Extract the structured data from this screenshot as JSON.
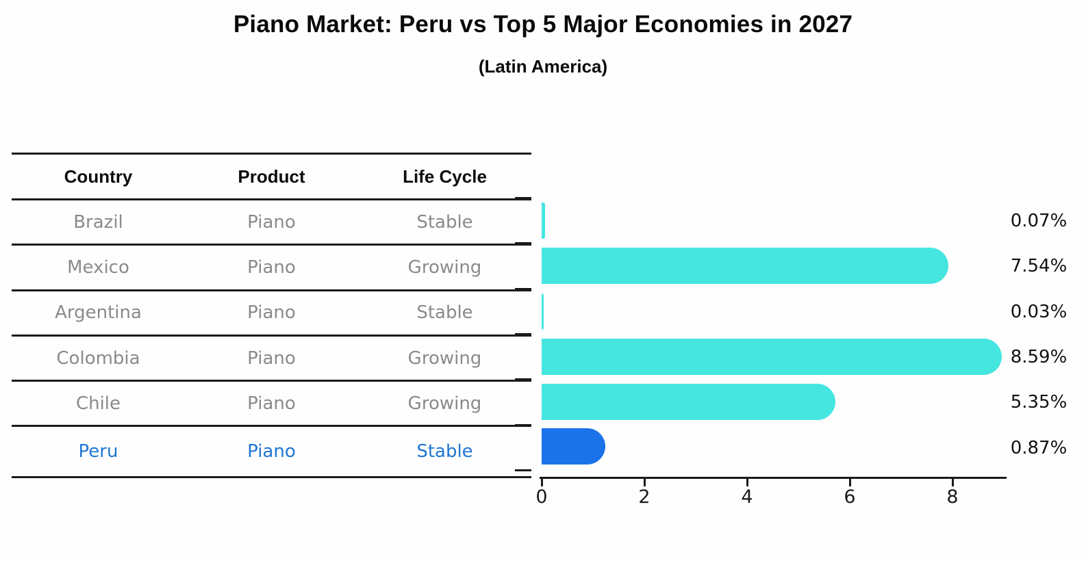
{
  "chart_data": {
    "type": "bar",
    "orientation": "horizontal",
    "title": "Piano Market: Peru vs Top 5 Major Economies in 2027",
    "subtitle": "(Latin America)",
    "categories": [
      "Brazil",
      "Mexico",
      "Argentina",
      "Colombia",
      "Chile",
      "Peru"
    ],
    "values": [
      0.07,
      7.54,
      0.03,
      8.59,
      5.35,
      0.87
    ],
    "display_values": [
      "0.07%",
      "7.54%",
      "0.03%",
      "8.59%",
      "5.35%",
      "0.87%"
    ],
    "highlight_category": "Peru",
    "highlight_index": 5,
    "x_ticks": [
      0,
      2,
      4,
      6,
      8
    ],
    "xlim": [
      0,
      9.1
    ],
    "xlabel": "",
    "ylabel": "",
    "grid": false,
    "legend": false,
    "bar_color": "#45E6E0",
    "highlight_color": "#1A73E8",
    "value_label_color": "#111111",
    "axis_color": "#1a1a1a"
  },
  "table": {
    "headers": [
      "Country",
      "Product",
      "Life Cycle"
    ],
    "rows": [
      {
        "country": "Brazil",
        "product": "Piano",
        "life_cycle": "Stable"
      },
      {
        "country": "Mexico",
        "product": "Piano",
        "life_cycle": "Growing"
      },
      {
        "country": "Argentina",
        "product": "Piano",
        "life_cycle": "Stable"
      },
      {
        "country": "Colombia",
        "product": "Piano",
        "life_cycle": "Growing"
      },
      {
        "country": "Chile",
        "product": "Piano",
        "life_cycle": "Growing"
      },
      {
        "country": "Peru",
        "product": "Piano",
        "life_cycle": "Stable"
      }
    ],
    "highlight_row_index": 5,
    "header_color": "#0d0d0d",
    "text_color": "#8a8a8a",
    "highlight_text_color": "#1f76d2"
  }
}
